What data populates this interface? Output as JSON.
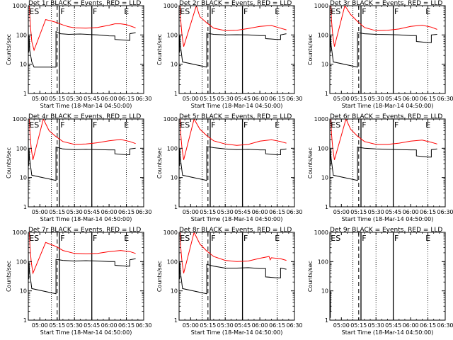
{
  "chart_data": {
    "type": "line",
    "y_scale": "log",
    "ylim": [
      1,
      1000
    ],
    "y_ticks": [
      1,
      10,
      100,
      1000
    ],
    "y_tick_labels": [
      "1",
      "10",
      "100",
      "1000"
    ],
    "ylabel": "Counts/sec",
    "xlabel": "Start Time (18-Mar-14 04:50:00)",
    "x_range": [
      "04:50",
      "06:30"
    ],
    "x_tick_labels": [
      "05:00",
      "05:15",
      "05:30",
      "05:45",
      "06:00",
      "06:15",
      "06:30"
    ],
    "marker_labels": [
      "ES",
      "F",
      "F",
      "E"
    ],
    "grid": false,
    "colors": {
      "events": "#000000",
      "lld": "#ff0000"
    },
    "panels": [
      {
        "title": "Det 1r BLACK = Events, RED = LLD",
        "lld": [
          [
            0.9,
            1000
          ],
          [
            1.2,
            500
          ],
          [
            1.8,
            200
          ],
          [
            2.5,
            100
          ],
          [
            3,
            60
          ],
          [
            5,
            30
          ],
          [
            15,
            335
          ],
          [
            20,
            300
          ],
          [
            24,
            270
          ],
          [
            30,
            220
          ],
          [
            35,
            190
          ],
          [
            40,
            175
          ],
          [
            50,
            170
          ],
          [
            60,
            180
          ],
          [
            70,
            215
          ],
          [
            75,
            240
          ],
          [
            80,
            240
          ],
          [
            85,
            225
          ],
          [
            88,
            205
          ],
          [
            93,
            175
          ]
        ],
        "events": [
          [
            0.4,
            25
          ],
          [
            0.6,
            95
          ],
          [
            0.9,
            60
          ],
          [
            1.2,
            30
          ],
          [
            2,
            20
          ],
          [
            3,
            12
          ],
          [
            5,
            8
          ],
          [
            24,
            8
          ],
          [
            24,
            130
          ],
          [
            28,
            110
          ],
          [
            35,
            105
          ],
          [
            45,
            108
          ],
          [
            60,
            100
          ],
          [
            70,
            93
          ],
          [
            75,
            92
          ],
          [
            75,
            70
          ],
          [
            85,
            66
          ],
          [
            88,
            65
          ],
          [
            88,
            110
          ],
          [
            93,
            120
          ]
        ]
      },
      {
        "title": "Det 2r BLACK = Events, RED = LLD",
        "lld": [
          [
            0.9,
            1000
          ],
          [
            1.5,
            300
          ],
          [
            2.5,
            100
          ],
          [
            4,
            40
          ],
          [
            15,
            1000
          ],
          [
            18,
            420
          ],
          [
            24,
            260
          ],
          [
            30,
            170
          ],
          [
            40,
            140
          ],
          [
            50,
            145
          ],
          [
            60,
            165
          ],
          [
            70,
            195
          ],
          [
            80,
            210
          ],
          [
            88,
            170
          ],
          [
            93,
            150
          ]
        ],
        "events": [
          [
            0.4,
            25
          ],
          [
            0.6,
            95
          ],
          [
            1,
            50
          ],
          [
            3,
            12
          ],
          [
            24,
            8
          ],
          [
            24,
            115
          ],
          [
            30,
            105
          ],
          [
            40,
            100
          ],
          [
            50,
            102
          ],
          [
            60,
            100
          ],
          [
            70,
            95
          ],
          [
            75,
            95
          ],
          [
            75,
            75
          ],
          [
            85,
            70
          ],
          [
            88,
            70
          ],
          [
            88,
            100
          ],
          [
            93,
            110
          ]
        ]
      },
      {
        "title": "Det 3r BLACK = Events, RED = LLD",
        "lld": [
          [
            0.9,
            1000
          ],
          [
            1.5,
            300
          ],
          [
            2.5,
            100
          ],
          [
            4,
            40
          ],
          [
            13,
            1000
          ],
          [
            18,
            500
          ],
          [
            24,
            290
          ],
          [
            30,
            180
          ],
          [
            40,
            140
          ],
          [
            50,
            145
          ],
          [
            60,
            160
          ],
          [
            70,
            195
          ],
          [
            80,
            215
          ],
          [
            88,
            185
          ],
          [
            93,
            155
          ]
        ],
        "events": [
          [
            0.4,
            25
          ],
          [
            0.6,
            95
          ],
          [
            1,
            50
          ],
          [
            3,
            12
          ],
          [
            24,
            8
          ],
          [
            24,
            120
          ],
          [
            30,
            110
          ],
          [
            40,
            105
          ],
          [
            50,
            103
          ],
          [
            60,
            100
          ],
          [
            70,
            95
          ],
          [
            75,
            95
          ],
          [
            75,
            60
          ],
          [
            85,
            55
          ],
          [
            88,
            55
          ],
          [
            88,
            100
          ],
          [
            93,
            105
          ]
        ]
      },
      {
        "title": "Det 4r BLACK = Events, RED = LLD",
        "lld": [
          [
            0.9,
            1000
          ],
          [
            1.5,
            300
          ],
          [
            2.5,
            100
          ],
          [
            4,
            40
          ],
          [
            13,
            1000
          ],
          [
            18,
            400
          ],
          [
            24,
            250
          ],
          [
            30,
            170
          ],
          [
            40,
            135
          ],
          [
            50,
            140
          ],
          [
            60,
            155
          ],
          [
            70,
            180
          ],
          [
            80,
            200
          ],
          [
            88,
            170
          ],
          [
            93,
            145
          ]
        ],
        "events": [
          [
            0.4,
            25
          ],
          [
            0.6,
            95
          ],
          [
            1,
            50
          ],
          [
            3,
            12
          ],
          [
            24,
            8
          ],
          [
            24,
            110
          ],
          [
            30,
            95
          ],
          [
            40,
            90
          ],
          [
            50,
            92
          ],
          [
            60,
            90
          ],
          [
            70,
            88
          ],
          [
            75,
            88
          ],
          [
            75,
            65
          ],
          [
            85,
            60
          ],
          [
            88,
            60
          ],
          [
            88,
            95
          ],
          [
            93,
            100
          ]
        ]
      },
      {
        "title": "Det 5r BLACK = Events, RED = LLD",
        "lld": [
          [
            0.9,
            1000
          ],
          [
            1.5,
            300
          ],
          [
            2.5,
            100
          ],
          [
            4,
            40
          ],
          [
            13,
            1000
          ],
          [
            18,
            450
          ],
          [
            24,
            270
          ],
          [
            30,
            180
          ],
          [
            40,
            140
          ],
          [
            50,
            125
          ],
          [
            60,
            135
          ],
          [
            70,
            175
          ],
          [
            80,
            195
          ],
          [
            88,
            170
          ],
          [
            93,
            150
          ]
        ],
        "events": [
          [
            0.4,
            25
          ],
          [
            0.6,
            95
          ],
          [
            1,
            50
          ],
          [
            3,
            12
          ],
          [
            24,
            8
          ],
          [
            24,
            115
          ],
          [
            30,
            105
          ],
          [
            40,
            95
          ],
          [
            50,
            90
          ],
          [
            60,
            92
          ],
          [
            70,
            88
          ],
          [
            75,
            88
          ],
          [
            75,
            65
          ],
          [
            85,
            60
          ],
          [
            88,
            60
          ],
          [
            88,
            90
          ],
          [
            93,
            95
          ]
        ]
      },
      {
        "title": "Det 6r BLACK = Events, RED = LLD",
        "lld": [
          [
            0.9,
            1000
          ],
          [
            1.5,
            300
          ],
          [
            2.5,
            100
          ],
          [
            4,
            40
          ],
          [
            14,
            1000
          ],
          [
            18,
            450
          ],
          [
            24,
            260
          ],
          [
            30,
            170
          ],
          [
            40,
            135
          ],
          [
            50,
            135
          ],
          [
            60,
            150
          ],
          [
            70,
            175
          ],
          [
            80,
            190
          ],
          [
            88,
            160
          ],
          [
            93,
            140
          ]
        ],
        "events": [
          [
            0.4,
            25
          ],
          [
            0.6,
            95
          ],
          [
            1,
            50
          ],
          [
            3,
            12
          ],
          [
            24,
            8
          ],
          [
            24,
            110
          ],
          [
            30,
            100
          ],
          [
            40,
            95
          ],
          [
            50,
            92
          ],
          [
            60,
            90
          ],
          [
            70,
            88
          ],
          [
            75,
            88
          ],
          [
            75,
            55
          ],
          [
            85,
            50
          ],
          [
            88,
            50
          ],
          [
            88,
            90
          ],
          [
            93,
            95
          ]
        ]
      },
      {
        "title": "Det 7r BLACK = Events, RED = LLD",
        "lld": [
          [
            0.9,
            1000
          ],
          [
            1.5,
            300
          ],
          [
            2.5,
            100
          ],
          [
            4,
            40
          ],
          [
            15,
            450
          ],
          [
            20,
            380
          ],
          [
            24,
            330
          ],
          [
            30,
            240
          ],
          [
            40,
            190
          ],
          [
            50,
            185
          ],
          [
            60,
            190
          ],
          [
            70,
            220
          ],
          [
            80,
            240
          ],
          [
            88,
            220
          ],
          [
            93,
            190
          ]
        ],
        "events": [
          [
            0.4,
            25
          ],
          [
            0.6,
            95
          ],
          [
            1,
            50
          ],
          [
            3,
            12
          ],
          [
            24,
            8
          ],
          [
            24,
            120
          ],
          [
            30,
            110
          ],
          [
            40,
            105
          ],
          [
            50,
            108
          ],
          [
            60,
            105
          ],
          [
            70,
            100
          ],
          [
            75,
            100
          ],
          [
            75,
            75
          ],
          [
            85,
            70
          ],
          [
            88,
            70
          ],
          [
            88,
            115
          ],
          [
            93,
            125
          ]
        ]
      },
      {
        "title": "Det 8r BLACK = Events, RED = LLD",
        "lld": [
          [
            0.9,
            1000
          ],
          [
            1.5,
            300
          ],
          [
            2.5,
            100
          ],
          [
            4,
            40
          ],
          [
            13,
            1000
          ],
          [
            18,
            400
          ],
          [
            24,
            230
          ],
          [
            30,
            150
          ],
          [
            40,
            110
          ],
          [
            50,
            100
          ],
          [
            60,
            105
          ],
          [
            70,
            130
          ],
          [
            78,
            150
          ],
          [
            79,
            115
          ],
          [
            80,
            135
          ],
          [
            88,
            125
          ],
          [
            93,
            110
          ]
        ],
        "events": [
          [
            0.4,
            25
          ],
          [
            0.6,
            95
          ],
          [
            1,
            50
          ],
          [
            3,
            12
          ],
          [
            24,
            8
          ],
          [
            24,
            80
          ],
          [
            30,
            70
          ],
          [
            40,
            60
          ],
          [
            50,
            60
          ],
          [
            60,
            62
          ],
          [
            70,
            58
          ],
          [
            75,
            58
          ],
          [
            75,
            30
          ],
          [
            85,
            28
          ],
          [
            88,
            28
          ],
          [
            88,
            60
          ],
          [
            93,
            55
          ]
        ]
      },
      {
        "title": "Det 9r BLACK = Events, RED = LLD",
        "lld": [],
        "events": [
          [
            0.4,
            1.2
          ],
          [
            0.5,
            10
          ],
          [
            0.6,
            2
          ]
        ]
      }
    ]
  }
}
